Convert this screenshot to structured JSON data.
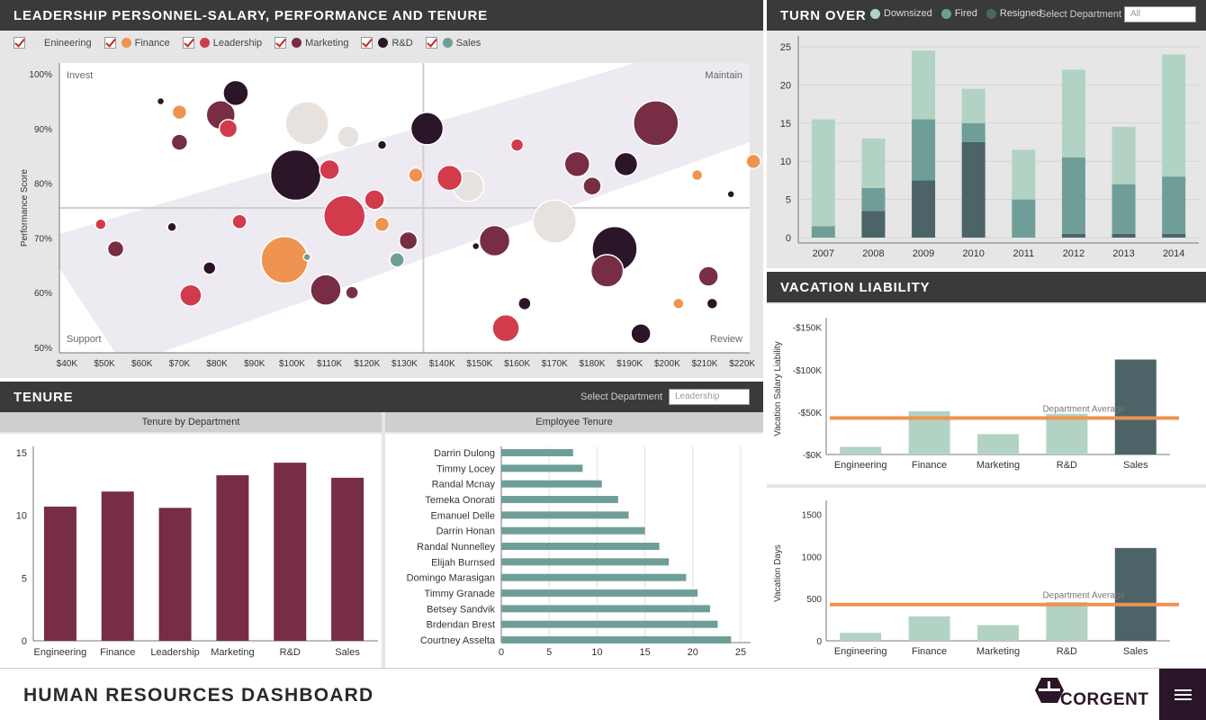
{
  "scatter": {
    "title": "LEADERSHIP PERSONNEL-SALARY, PERFORMANCE AND TENURE",
    "legend": [
      {
        "label": "Enineering",
        "color": "#e8e2de"
      },
      {
        "label": "Finance",
        "color": "#ee9350"
      },
      {
        "label": "Leadership",
        "color": "#d13b4c"
      },
      {
        "label": "Marketing",
        "color": "#772d44"
      },
      {
        "label": "R&D",
        "color": "#2b1528"
      },
      {
        "label": "Sales",
        "color": "#6f9e98"
      }
    ],
    "quadrants": {
      "tl": "Invest",
      "tr": "Maintain",
      "bl": "Support",
      "br": "Review"
    },
    "ylabel": "Performance Score",
    "yticks": [
      "50%",
      "60%",
      "70%",
      "80%",
      "90%",
      "100%"
    ],
    "xticks": [
      "$40K",
      "$50K",
      "$60K",
      "$70K",
      "$80K",
      "$90K",
      "$100K",
      "$110K",
      "$120K",
      "$130K",
      "$140K",
      "$150K",
      "$160K",
      "$170K",
      "$180K",
      "$190K",
      "$200K",
      "$210K",
      "$220K"
    ]
  },
  "turnover": {
    "title": "TURN OVER",
    "legend": [
      {
        "label": "Downsized",
        "color": "#b2d3c3"
      },
      {
        "label": "Fired",
        "color": "#6f9e98"
      },
      {
        "label": "Resigned",
        "color": "#4c6468"
      }
    ],
    "select_label": "Select Department",
    "select_value": "All"
  },
  "vacation": {
    "title": "VACATION LIABILITY",
    "avg_label": "Department Average",
    "liability_ylabel": "Vacation Salary Liability",
    "days_ylabel": "Vacation Days"
  },
  "tenure": {
    "title": "TENURE",
    "select_label": "Select Department",
    "select_value": "Leadership",
    "left_title": "Tenure by Department",
    "right_title": "Employee Tenure"
  },
  "footer": {
    "title": "HUMAN RESOURCES DASHBOARD",
    "brand": "CORGENT"
  },
  "chart_data": [
    {
      "type": "scatter",
      "title": "LEADERSHIP PERSONNEL-SALARY, PERFORMANCE AND TENURE",
      "xlabel": "",
      "ylabel": "Performance Score",
      "xlim": [
        38,
        222
      ],
      "ylim": [
        49,
        102
      ],
      "x_divider": 135,
      "y_divider": 75.5,
      "series": [
        {
          "name": "Enineering",
          "color": "#e8e2de",
          "points": [
            [
              104,
              91,
              24
            ],
            [
              115,
              88.5,
              12
            ],
            [
              147,
              79.5,
              17
            ],
            [
              170,
              73,
              24
            ]
          ]
        },
        {
          "name": "Finance",
          "color": "#ee9350",
          "points": [
            [
              70,
              93,
              8
            ],
            [
              98,
              66,
              26
            ],
            [
              124,
              72.5,
              8
            ],
            [
              133,
              81.5,
              8
            ],
            [
              203,
              58,
              6
            ],
            [
              208,
              81.5,
              6
            ],
            [
              223,
              84,
              8
            ]
          ]
        },
        {
          "name": "Leadership",
          "color": "#d13b4c",
          "points": [
            [
              49,
              72.5,
              6
            ],
            [
              73,
              59.5,
              12
            ],
            [
              83,
              90,
              10
            ],
            [
              86,
              73,
              8
            ],
            [
              110,
              82.5,
              11
            ],
            [
              114,
              74,
              23
            ],
            [
              122,
              77,
              11
            ],
            [
              142,
              81,
              14
            ],
            [
              157,
              53.5,
              15
            ],
            [
              160,
              87,
              7
            ]
          ]
        },
        {
          "name": "Marketing",
          "color": "#772d44",
          "points": [
            [
              53,
              68,
              9
            ],
            [
              70,
              87.5,
              9
            ],
            [
              81,
              92.5,
              16
            ],
            [
              109,
              60.5,
              17
            ],
            [
              116,
              60,
              7
            ],
            [
              131,
              69.5,
              10
            ],
            [
              154,
              69.5,
              17
            ],
            [
              176,
              83.5,
              14
            ],
            [
              180,
              79.5,
              10
            ],
            [
              184,
              64,
              18
            ],
            [
              197,
              91,
              25
            ],
            [
              211,
              63,
              11
            ]
          ]
        },
        {
          "name": "R&D",
          "color": "#2b1528",
          "points": [
            [
              65,
              95,
              4
            ],
            [
              68,
              72,
              5
            ],
            [
              78,
              64.5,
              7
            ],
            [
              85,
              96.5,
              14
            ],
            [
              101,
              81.5,
              28
            ],
            [
              124,
              87,
              5
            ],
            [
              136,
              90,
              18
            ],
            [
              149,
              68.5,
              4
            ],
            [
              162,
              58,
              7
            ],
            [
              189,
              83.5,
              13
            ],
            [
              186,
              68,
              25
            ],
            [
              193,
              52.5,
              11
            ],
            [
              217,
              78,
              4
            ],
            [
              212,
              58,
              6
            ]
          ]
        },
        {
          "name": "Sales",
          "color": "#6f9e98",
          "points": [
            [
              104,
              66.5,
              4
            ],
            [
              128,
              66,
              8
            ]
          ]
        }
      ]
    },
    {
      "type": "bar",
      "title": "TURN OVER",
      "categories": [
        "2007",
        "2008",
        "2009",
        "2010",
        "2011",
        "2012",
        "2013",
        "2014"
      ],
      "ylim": [
        0,
        25
      ],
      "stacked": true,
      "series": [
        {
          "name": "Resigned",
          "color": "#4c6468",
          "values": [
            0,
            3.5,
            7.5,
            12.5,
            0,
            0.5,
            0.5,
            0.5
          ]
        },
        {
          "name": "Fired",
          "color": "#6f9e98",
          "values": [
            1.5,
            3,
            8,
            2.5,
            5,
            10,
            6.5,
            7.5
          ]
        },
        {
          "name": "Downsized",
          "color": "#b2d3c3",
          "values": [
            14,
            6.5,
            9,
            4.5,
            6.5,
            11.5,
            7.5,
            16
          ]
        }
      ]
    },
    {
      "type": "bar",
      "title": "VACATION LIABILITY",
      "ylabel": "Vacation Salary Liability",
      "categories": [
        "Engineering",
        "Finance",
        "Marketing",
        "R&D",
        "Sales"
      ],
      "yticks": [
        "-$0K",
        "-$50K",
        "-$100K",
        "-$150K"
      ],
      "values": [
        9,
        51,
        24,
        48,
        112
      ],
      "colors": [
        "#b2d3c3",
        "#b2d3c3",
        "#b2d3c3",
        "#b2d3c3",
        "#4c6468"
      ],
      "average": 43,
      "average_label": "Department Average",
      "ylim": [
        0,
        155
      ]
    },
    {
      "type": "bar",
      "ylabel": "Vacation Days",
      "categories": [
        "Engineering",
        "Finance",
        "Marketing",
        "R&D",
        "Sales"
      ],
      "yticks": [
        "0",
        "500",
        "1000",
        "1500"
      ],
      "values": [
        95,
        290,
        185,
        460,
        1100
      ],
      "colors": [
        "#b2d3c3",
        "#b2d3c3",
        "#b2d3c3",
        "#b2d3c3",
        "#4c6468"
      ],
      "average": 430,
      "average_label": "Department Average",
      "ylim": [
        0,
        1600
      ]
    },
    {
      "type": "bar",
      "title": "Tenure by Department",
      "categories": [
        "Engineering",
        "Finance",
        "Leadership",
        "Marketing",
        "R&D",
        "Sales"
      ],
      "values": [
        10.7,
        11.9,
        10.6,
        13.2,
        14.2,
        13.0
      ],
      "color": "#772d44",
      "yticks": [
        "0",
        "5",
        "10",
        "15"
      ],
      "ylim": [
        0,
        15.5
      ]
    },
    {
      "type": "bar",
      "orientation": "horizontal",
      "title": "Employee Tenure",
      "categories": [
        "Darrin Dulong",
        "Timmy Locey",
        "Randal Mcnay",
        "Temeka Onorati",
        "Emanuel Delle",
        "Darrin Honan",
        "Randal Nunnelley",
        "Elijah Burnsed",
        "Domingo Marasigan",
        "Timmy Granade",
        "Betsey Sandvik",
        "Brdendan Brest",
        "Courtney Asselta"
      ],
      "values": [
        7.5,
        8.5,
        10.5,
        12.2,
        13.3,
        15,
        16.5,
        17.5,
        19.3,
        20.5,
        21.8,
        22.6,
        24
      ],
      "color": "#6f9e98",
      "xticks": [
        "0",
        "5",
        "10",
        "15",
        "20",
        "25"
      ],
      "xlim": [
        0,
        25
      ]
    }
  ]
}
